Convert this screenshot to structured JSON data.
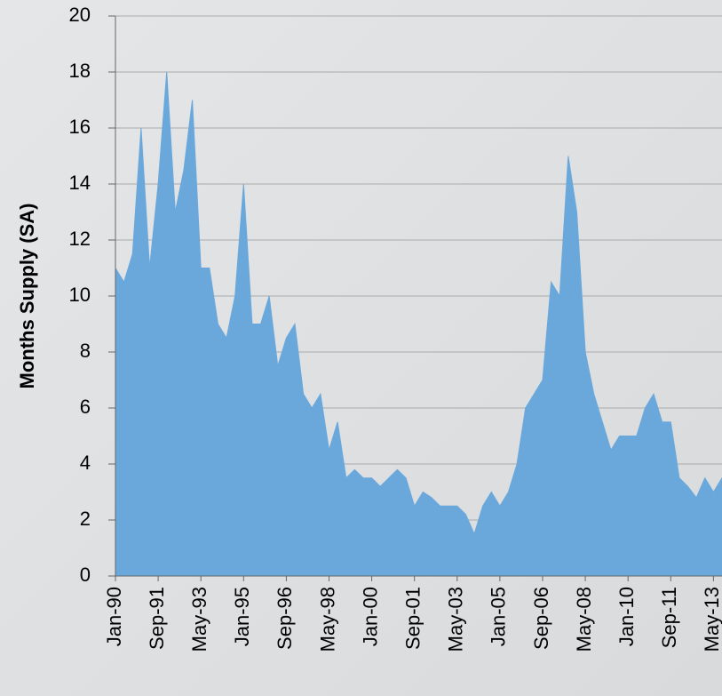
{
  "chart_data": {
    "type": "area",
    "y_label": "Months Supply (SA)",
    "categories": [
      "Jan-90",
      null,
      null,
      null,
      null,
      "Sep-91",
      null,
      null,
      null,
      null,
      "May-93",
      null,
      null,
      null,
      null,
      "Jan-95",
      null,
      null,
      null,
      null,
      "Sep-96",
      null,
      null,
      null,
      null,
      "May-98",
      null,
      null,
      null,
      null,
      "Jan-00",
      null,
      null,
      null,
      null,
      "Sep-01",
      null,
      null,
      null,
      null,
      "May-03",
      null,
      null,
      null,
      null,
      "Jan-05",
      null,
      null,
      null,
      null,
      "Sep-06",
      null,
      null,
      null,
      null,
      "May-08",
      null,
      null,
      null,
      null,
      "Jan-10",
      null,
      null,
      null,
      null,
      "Sep-11",
      null,
      null,
      null,
      null,
      "May-13",
      null
    ],
    "values": [
      11,
      10.5,
      11.5,
      16,
      11,
      14,
      18,
      13,
      14.5,
      17,
      11,
      11,
      9,
      8.5,
      10,
      14,
      9,
      9,
      10,
      7.5,
      8.5,
      9,
      6.5,
      6,
      6.5,
      4.5,
      5.5,
      3.5,
      3.8,
      3.5,
      3.5,
      3.2,
      3.5,
      3.8,
      3.5,
      2.5,
      3,
      2.8,
      2.5,
      2.5,
      2.5,
      2.2,
      1.5,
      2.5,
      3,
      2.5,
      3,
      4,
      6,
      6.5,
      7,
      10.5,
      10,
      15,
      13,
      8,
      6.5,
      5.5,
      4.5,
      5,
      5,
      5,
      6,
      6.5,
      5.5,
      5.5,
      3.5,
      3.2,
      2.8,
      3.5,
      3,
      3.5
    ],
    "color": "#6aa8dc",
    "ylim": [
      0,
      20
    ],
    "yticks": [
      0,
      2,
      4,
      6,
      8,
      10,
      12,
      14,
      16,
      18,
      20
    ],
    "grid": true
  }
}
